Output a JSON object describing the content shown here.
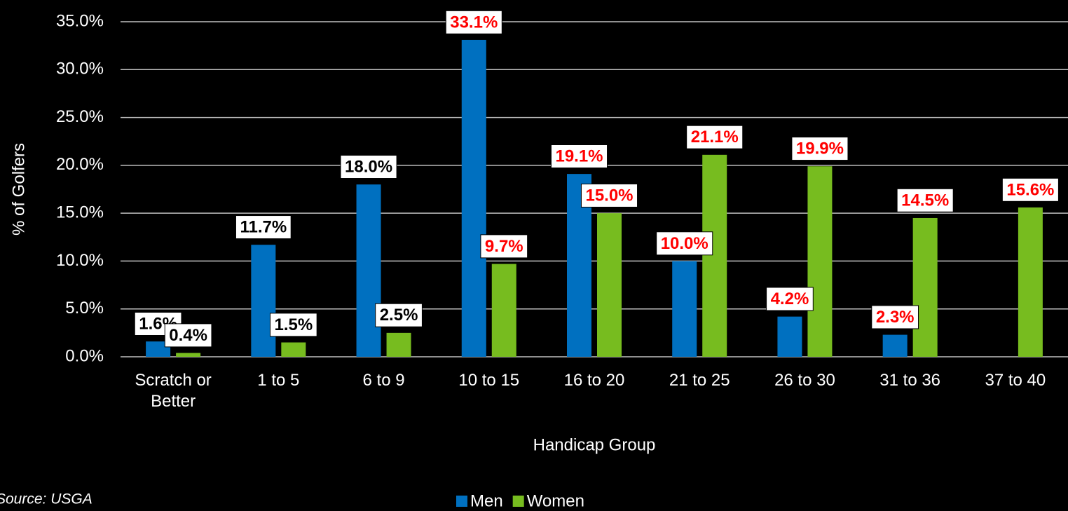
{
  "chart_data": {
    "type": "bar",
    "x_label": "Handicap Group",
    "y_label": "% of Golfers",
    "source": "Source: USGA",
    "categories": [
      "Scratch or Better",
      "1 to 5",
      "6 to 9",
      "10 to 15",
      "16 to 20",
      "21 to 25",
      "26 to 30",
      "31 to 36",
      "37 to 40"
    ],
    "series": [
      {
        "name": "Men",
        "color": "#0070c0",
        "values": [
          1.6,
          11.7,
          18.0,
          33.1,
          19.1,
          10.0,
          4.2,
          2.3,
          null
        ],
        "value_labels": [
          "1.6%",
          "11.7%",
          "18.0%",
          "33.1%",
          "19.1%",
          "10.0%",
          "4.2%",
          "2.3%",
          null
        ],
        "value_label_colors": [
          "#000000",
          "#000000",
          "#000000",
          "#ff0000",
          "#ff0000",
          "#ff0000",
          "#ff0000",
          "#ff0000",
          null
        ]
      },
      {
        "name": "Women",
        "color": "#77bc1f",
        "values": [
          0.4,
          1.5,
          2.5,
          9.7,
          15.0,
          21.1,
          19.9,
          14.5,
          15.6
        ],
        "value_labels": [
          "0.4%",
          "1.5%",
          "2.5%",
          "9.7%",
          "15.0%",
          "21.1%",
          "19.9%",
          "14.5%",
          "15.6%"
        ],
        "value_label_colors": [
          "#000000",
          "#000000",
          "#000000",
          "#ff0000",
          "#ff0000",
          "#ff0000",
          "#ff0000",
          "#ff0000",
          "#ff0000"
        ]
      }
    ],
    "ylim": [
      0,
      35
    ],
    "yticks": [
      {
        "value": 0,
        "label": "0.0%"
      },
      {
        "value": 5,
        "label": "5.0%"
      },
      {
        "value": 10,
        "label": "10.0%"
      },
      {
        "value": 15,
        "label": "15.0%"
      },
      {
        "value": 20,
        "label": "20.0%"
      },
      {
        "value": 25,
        "label": "25.0%"
      },
      {
        "value": 30,
        "label": "30.0%"
      },
      {
        "value": 35,
        "label": "35.0%"
      }
    ],
    "grid": true,
    "legend": "bottom"
  }
}
